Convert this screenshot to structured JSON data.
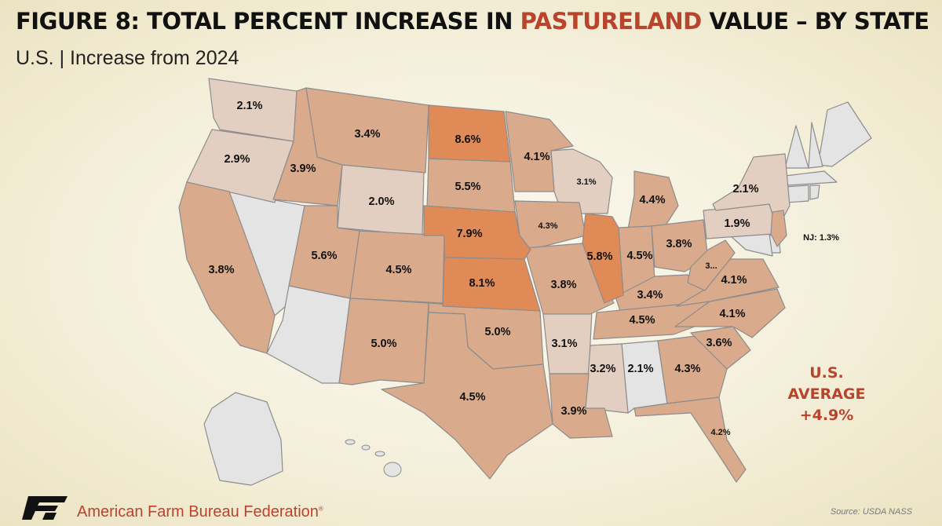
{
  "title": {
    "prefix": "FIGURE 8: TOTAL PERCENT INCREASE IN ",
    "highlight": "PASTURELAND",
    "suffix": " VALUE – BY STATE"
  },
  "subtitle": "U.S. | Increase from 2024",
  "average": {
    "line1": "U.S.",
    "line2": "AVERAGE",
    "line3": "+4.9%"
  },
  "colors": {
    "highlight": "#b8442b",
    "no_data": "#e4e4e4",
    "low": "#e3cfc2",
    "mid": "#d9ab8c",
    "high": "#e08a57"
  },
  "states": {
    "WA": {
      "label": "2.1%"
    },
    "OR": {
      "label": "2.9%"
    },
    "ID": {
      "label": "3.9%"
    },
    "MT": {
      "label": "3.4%"
    },
    "ND": {
      "label": "8.6%"
    },
    "SD": {
      "label": "5.5%"
    },
    "WY": {
      "label": "2.0%"
    },
    "NE": {
      "label": "7.9%"
    },
    "KS": {
      "label": "8.1%"
    },
    "CA": {
      "label": "3.8%"
    },
    "UT": {
      "label": "5.6%"
    },
    "CO": {
      "label": "4.5%"
    },
    "NM": {
      "label": "5.0%"
    },
    "OK": {
      "label": "5.0%"
    },
    "TX": {
      "label": "4.5%"
    },
    "MN": {
      "label": "4.1%"
    },
    "WI": {
      "label": "3.1%"
    },
    "IA": {
      "label": "4.3%"
    },
    "MO": {
      "label": "3.8%"
    },
    "AR": {
      "label": "3.1%"
    },
    "LA": {
      "label": "3.9%"
    },
    "MI": {
      "label": "4.4%"
    },
    "IL": {
      "label": "5.8%"
    },
    "IN": {
      "label": "4.5%"
    },
    "OH": {
      "label": "3.8%"
    },
    "KY": {
      "label": "3.4%"
    },
    "TN": {
      "label": "4.5%"
    },
    "MS": {
      "label": "3.2%"
    },
    "AL": {
      "label": "2.1%"
    },
    "GA": {
      "label": "4.3%"
    },
    "FL": {
      "label": "4.2%"
    },
    "SC": {
      "label": "3.6%"
    },
    "NC": {
      "label": "4.1%"
    },
    "VA": {
      "label": "4.1%"
    },
    "WV": {
      "label": "3..."
    },
    "PA": {
      "label": "1.9%"
    },
    "NY": {
      "label": "2.1%"
    },
    "NJ": {
      "label": "NJ: 1.3%"
    }
  },
  "footer": {
    "org": "American Farm Bureau Federation",
    "reg": "®",
    "source": "Source: USDA NASS"
  }
}
